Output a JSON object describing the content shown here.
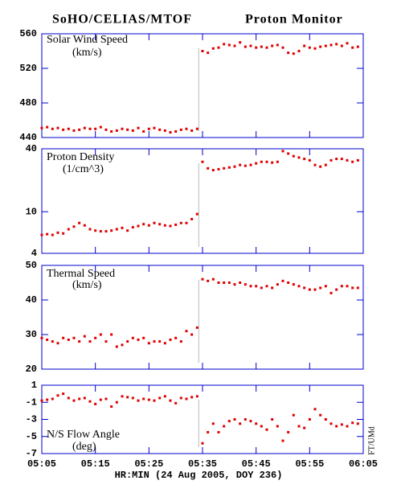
{
  "title_left": "SoHO/CELIAS/MTOF",
  "title_right": "Proton Monitor",
  "xlabel": "HR:MIN (24 Aug 2005, DOY 236)",
  "credit": "FT/UMd",
  "chart_data": [
    {
      "type": "scatter",
      "title": "Solar Wind Speed",
      "units": "(km/s)",
      "color": "#dd0000",
      "vline": "05:34",
      "xlim": [
        "05:05",
        "06:05"
      ],
      "ylim": [
        440,
        560
      ],
      "yticks": [
        440,
        480,
        520,
        560
      ],
      "x": [
        "05:05",
        "05:06",
        "05:07",
        "05:08",
        "05:09",
        "05:10",
        "05:11",
        "05:12",
        "05:13",
        "05:14",
        "05:15",
        "05:16",
        "05:17",
        "05:18",
        "05:19",
        "05:20",
        "05:21",
        "05:22",
        "05:23",
        "05:24",
        "05:25",
        "05:26",
        "05:27",
        "05:28",
        "05:29",
        "05:30",
        "05:31",
        "05:32",
        "05:33",
        "05:34",
        "05:35",
        "05:36",
        "05:37",
        "05:38",
        "05:39",
        "05:40",
        "05:41",
        "05:42",
        "05:43",
        "05:44",
        "05:45",
        "05:46",
        "05:47",
        "05:48",
        "05:49",
        "05:50",
        "05:51",
        "05:52",
        "05:53",
        "05:54",
        "05:55",
        "05:56",
        "05:57",
        "05:58",
        "05:59",
        "06:00",
        "06:01",
        "06:02",
        "06:03",
        "06:04"
      ],
      "values": [
        451,
        452,
        450,
        451,
        449,
        450,
        448,
        449,
        451,
        450,
        450,
        452,
        449,
        447,
        448,
        450,
        449,
        448,
        451,
        447,
        450,
        451,
        449,
        448,
        446,
        447,
        449,
        450,
        448,
        450,
        540,
        538,
        543,
        544,
        548,
        547,
        546,
        550,
        545,
        546,
        544,
        545,
        544,
        546,
        547,
        544,
        538,
        537,
        540,
        546,
        544,
        543,
        545,
        546,
        547,
        548,
        546,
        549,
        544,
        545
      ]
    },
    {
      "type": "scatter",
      "title": "Proton Density",
      "units": "(1/cm^3)",
      "color": "#dd0000",
      "vline": "05:34",
      "log": true,
      "xlim": [
        "05:05",
        "06:05"
      ],
      "ylim": [
        4,
        40
      ],
      "yticks": [
        4,
        10,
        40
      ],
      "x": [
        "05:05",
        "05:06",
        "05:07",
        "05:08",
        "05:09",
        "05:10",
        "05:11",
        "05:12",
        "05:13",
        "05:14",
        "05:15",
        "05:16",
        "05:17",
        "05:18",
        "05:19",
        "05:20",
        "05:21",
        "05:22",
        "05:23",
        "05:24",
        "05:25",
        "05:26",
        "05:27",
        "05:28",
        "05:29",
        "05:30",
        "05:31",
        "05:32",
        "05:33",
        "05:34",
        "05:35",
        "05:36",
        "05:37",
        "05:38",
        "05:39",
        "05:40",
        "05:41",
        "05:42",
        "05:43",
        "05:44",
        "05:45",
        "05:46",
        "05:47",
        "05:48",
        "05:49",
        "05:50",
        "05:51",
        "05:52",
        "05:53",
        "05:54",
        "05:55",
        "05:56",
        "05:57",
        "05:58",
        "05:59",
        "06:00",
        "06:01",
        "06:02",
        "06:03",
        "06:04"
      ],
      "values": [
        6.0,
        6.1,
        6.0,
        6.3,
        6.2,
        6.8,
        7.2,
        7.8,
        7.4,
        6.8,
        6.6,
        6.5,
        6.5,
        6.6,
        6.8,
        7.0,
        6.6,
        7.1,
        7.3,
        7.6,
        7.4,
        7.8,
        7.6,
        7.4,
        7.3,
        7.5,
        7.8,
        7.8,
        8.5,
        9.5,
        30,
        26,
        25,
        25.5,
        26,
        26.5,
        27,
        28,
        27.5,
        28,
        29,
        30,
        30,
        29.5,
        30,
        38,
        36,
        34,
        33,
        32,
        31,
        28,
        27,
        28,
        31,
        32,
        32,
        31,
        30,
        31
      ]
    },
    {
      "type": "scatter",
      "title": "Thermal Speed",
      "units": "(km/s)",
      "color": "#dd0000",
      "vline": "05:34",
      "xlim": [
        "05:05",
        "06:05"
      ],
      "ylim": [
        20,
        50
      ],
      "yticks": [
        20,
        30,
        40,
        50
      ],
      "x": [
        "05:05",
        "05:06",
        "05:07",
        "05:08",
        "05:09",
        "05:10",
        "05:11",
        "05:12",
        "05:13",
        "05:14",
        "05:15",
        "05:16",
        "05:17",
        "05:18",
        "05:19",
        "05:20",
        "05:21",
        "05:22",
        "05:23",
        "05:24",
        "05:25",
        "05:26",
        "05:27",
        "05:28",
        "05:29",
        "05:30",
        "05:31",
        "05:32",
        "05:33",
        "05:34",
        "05:35",
        "05:36",
        "05:37",
        "05:38",
        "05:39",
        "05:40",
        "05:41",
        "05:42",
        "05:43",
        "05:44",
        "05:45",
        "05:46",
        "05:47",
        "05:48",
        "05:49",
        "05:50",
        "05:51",
        "05:52",
        "05:53",
        "05:54",
        "05:55",
        "05:56",
        "05:57",
        "05:58",
        "05:59",
        "06:00",
        "06:01",
        "06:02",
        "06:03",
        "06:04"
      ],
      "values": [
        29,
        28.5,
        28,
        27.5,
        29,
        28.5,
        29,
        28,
        29.5,
        28,
        29,
        30,
        28,
        30,
        26.5,
        27,
        28,
        29,
        28.5,
        29,
        27.5,
        28,
        28,
        27.5,
        28.5,
        29,
        28,
        31,
        30,
        32,
        46,
        45.5,
        46,
        45,
        45,
        45,
        44.5,
        45,
        44.5,
        44,
        44,
        43.5,
        44,
        43.5,
        44.5,
        45.5,
        45,
        44.5,
        44,
        43.5,
        43,
        43,
        43.5,
        44,
        42,
        43,
        44,
        44,
        43.5,
        43.5
      ]
    },
    {
      "type": "scatter",
      "title": "N/S Flow Angle",
      "units": "(deg)",
      "color": "#dd0000",
      "vline": "05:34",
      "xlim": [
        "05:05",
        "06:05"
      ],
      "ylim": [
        -7,
        1
      ],
      "yticks": [
        -7,
        -5,
        -3,
        -1,
        1
      ],
      "xticks": [
        "05:05",
        "05:15",
        "05:25",
        "05:35",
        "05:45",
        "05:55",
        "06:05"
      ],
      "x": [
        "05:05",
        "05:06",
        "05:07",
        "05:08",
        "05:09",
        "05:10",
        "05:11",
        "05:12",
        "05:13",
        "05:14",
        "05:15",
        "05:16",
        "05:17",
        "05:18",
        "05:19",
        "05:20",
        "05:21",
        "05:22",
        "05:23",
        "05:24",
        "05:25",
        "05:26",
        "05:27",
        "05:28",
        "05:29",
        "05:30",
        "05:31",
        "05:32",
        "05:33",
        "05:34",
        "05:35",
        "05:36",
        "05:37",
        "05:38",
        "05:39",
        "05:40",
        "05:41",
        "05:42",
        "05:43",
        "05:44",
        "05:45",
        "05:46",
        "05:47",
        "05:48",
        "05:49",
        "05:50",
        "05:51",
        "05:52",
        "05:53",
        "05:54",
        "05:55",
        "05:56",
        "05:57",
        "05:58",
        "05:59",
        "06:00",
        "06:01",
        "06:02",
        "06:03",
        "06:04"
      ],
      "values": [
        -0.8,
        -0.7,
        -0.6,
        -0.2,
        0,
        -0.5,
        -0.8,
        -0.6,
        -0.5,
        -0.9,
        -1.2,
        -0.7,
        -0.6,
        -1.5,
        -1,
        -0.3,
        -0.4,
        -0.5,
        -0.8,
        -0.6,
        -0.7,
        -0.8,
        -0.5,
        -0.3,
        -0.8,
        -1.1,
        -0.5,
        -0.6,
        -0.4,
        -0.3,
        -5.8,
        -4.5,
        -3.5,
        -4.5,
        -3.8,
        -3.2,
        -3,
        -3.5,
        -3,
        -3.2,
        -3.5,
        -3.8,
        -4.2,
        -3,
        -3.8,
        -5.5,
        -4.5,
        -2.5,
        -3.8,
        -4,
        -3,
        -1.8,
        -2.5,
        -3,
        -3.5,
        -3.8,
        -3.6,
        -3.8,
        -3.4,
        -3.5
      ]
    }
  ]
}
